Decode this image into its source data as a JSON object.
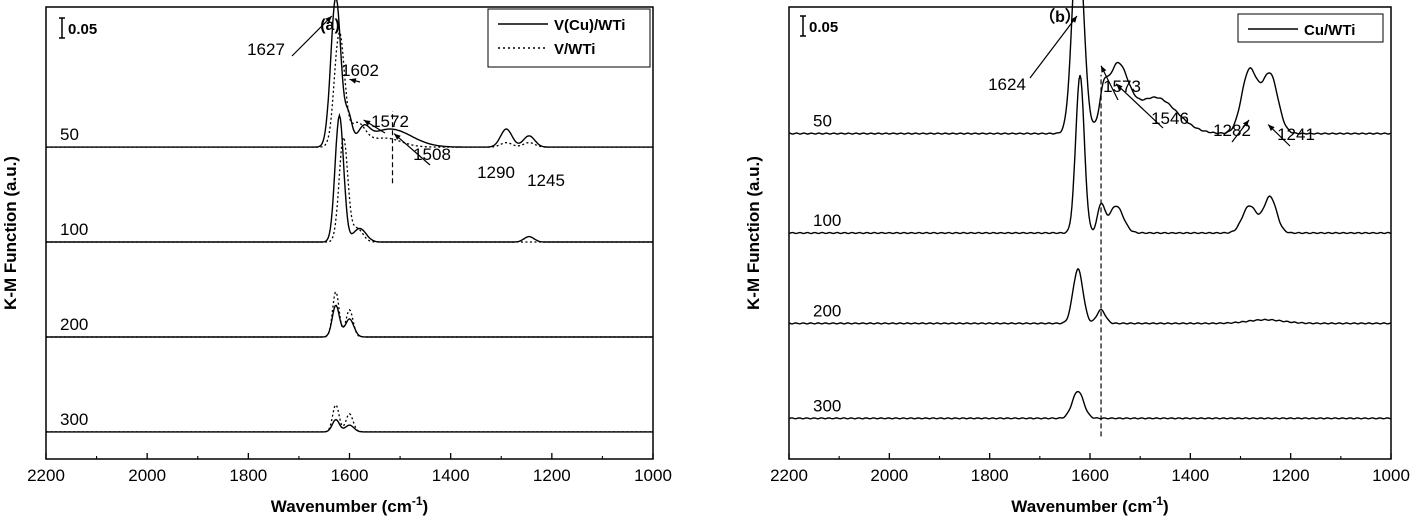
{
  "chart_data": [
    {
      "type": "line",
      "panel_label": "(a)",
      "xlabel": "Wavenumber (cm",
      "xlabel_sup": "-1",
      "xlabel_close": ")",
      "ylabel": "K-M Function (a.u.)",
      "xlim": [
        2200,
        1000
      ],
      "x_ticks": [
        "2200",
        "2000",
        "1800",
        "1600",
        "1400",
        "1200",
        "1000"
      ],
      "scale_bar_label": "0.05",
      "y_scale_bar": 0.05,
      "legend": {
        "position": "top-right",
        "entries": [
          {
            "label": "V(Cu)/WTi",
            "style": "solid"
          },
          {
            "label": "V/WTi",
            "style": "dotted"
          }
        ]
      },
      "offsets": [
        {
          "label": "50",
          "baseline": 0.69
        },
        {
          "label": "100",
          "baseline": 0.48
        },
        {
          "label": "200",
          "baseline": 0.27
        },
        {
          "label": "300",
          "baseline": 0.06
        }
      ],
      "annotations": [
        "1627",
        "1602",
        "1572",
        "1508",
        "1290",
        "1245"
      ],
      "dashed_marker_x": 1515,
      "series": [
        {
          "name": "V(Cu)/WTi",
          "style": "solid",
          "traces": [
            {
              "offset": "50",
              "peaks": [
                [
                  1627,
                  0.33,
                  14
                ],
                [
                  1602,
                  0.06,
                  10
                ],
                [
                  1572,
                  0.03,
                  16
                ],
                [
                  1520,
                  0.04,
                  60
                ],
                [
                  1290,
                  0.04,
                  16
                ],
                [
                  1245,
                  0.025,
                  16
                ]
              ]
            },
            {
              "offset": "100",
              "peaks": [
                [
                  1620,
                  0.28,
                  12
                ],
                [
                  1580,
                  0.03,
                  18
                ],
                [
                  1245,
                  0.012,
                  14
                ]
              ]
            },
            {
              "offset": "200",
              "peaks": [
                [
                  1627,
                  0.07,
                  10
                ],
                [
                  1600,
                  0.04,
                  12
                ]
              ]
            },
            {
              "offset": "300",
              "peaks": [
                [
                  1627,
                  0.027,
                  10
                ],
                [
                  1600,
                  0.015,
                  12
                ]
              ]
            }
          ]
        },
        {
          "name": "V/WTi",
          "style": "dotted",
          "traces": [
            {
              "offset": "50",
              "peaks": [
                [
                  1620,
                  0.25,
                  14
                ],
                [
                  1585,
                  0.05,
                  22
                ],
                [
                  1530,
                  0.02,
                  45
                ],
                [
                  1290,
                  0.01,
                  16
                ],
                [
                  1245,
                  0.01,
                  16
                ]
              ]
            },
            {
              "offset": "100",
              "peaks": [
                [
                  1612,
                  0.23,
                  12
                ],
                [
                  1585,
                  0.03,
                  16
                ]
              ]
            },
            {
              "offset": "200",
              "peaks": [
                [
                  1627,
                  0.1,
                  9
                ],
                [
                  1600,
                  0.06,
                  10
                ]
              ]
            },
            {
              "offset": "300",
              "peaks": [
                [
                  1627,
                  0.06,
                  9
                ],
                [
                  1600,
                  0.04,
                  10
                ]
              ]
            }
          ]
        }
      ]
    },
    {
      "type": "line",
      "panel_label": "（b）",
      "xlabel": "Wavenumber (cm",
      "xlabel_sup": "-1",
      "xlabel_close": ")",
      "ylabel": "K-M Function (a.u.)",
      "xlim": [
        2200,
        1000
      ],
      "x_ticks": [
        "2200",
        "2000",
        "1800",
        "1600",
        "1400",
        "1200",
        "1000"
      ],
      "scale_bar_label": "0.05",
      "y_scale_bar": 0.05,
      "legend": {
        "position": "top-right",
        "entries": [
          {
            "label": "Cu/WTi",
            "style": "solid"
          }
        ]
      },
      "offsets": [
        {
          "label": "50",
          "baseline": 0.72
        },
        {
          "label": "100",
          "baseline": 0.5
        },
        {
          "label": "200",
          "baseline": 0.3
        },
        {
          "label": "300",
          "baseline": 0.09
        }
      ],
      "annotations": [
        "1624",
        "1573",
        "1546",
        "1282",
        "1241"
      ],
      "dashed_marker_x": 1578,
      "series": [
        {
          "name": "Cu/WTi",
          "style": "solid",
          "traces": [
            {
              "offset": "50",
              "peaks": [
                [
                  1624,
                  0.45,
                  16
                ],
                [
                  1573,
                  0.05,
                  10
                ],
                [
                  1546,
                  0.14,
                  30
                ],
                [
                  1470,
                  0.08,
                  60
                ],
                [
                  1282,
                  0.14,
                  22
                ],
                [
                  1241,
                  0.13,
                  22
                ]
              ]
            },
            {
              "offset": "100",
              "peaks": [
                [
                  1620,
                  0.35,
                  12
                ],
                [
                  1578,
                  0.06,
                  10
                ],
                [
                  1548,
                  0.06,
                  20
                ],
                [
                  1282,
                  0.06,
                  20
                ],
                [
                  1241,
                  0.08,
                  18
                ]
              ]
            },
            {
              "offset": "200",
              "peaks": [
                [
                  1624,
                  0.12,
                  14
                ],
                [
                  1578,
                  0.03,
                  12
                ],
                [
                  1250,
                  0.008,
                  50
                ]
              ]
            },
            {
              "offset": "300",
              "peaks": [
                [
                  1624,
                  0.06,
                  16
                ]
              ]
            }
          ]
        }
      ]
    }
  ]
}
